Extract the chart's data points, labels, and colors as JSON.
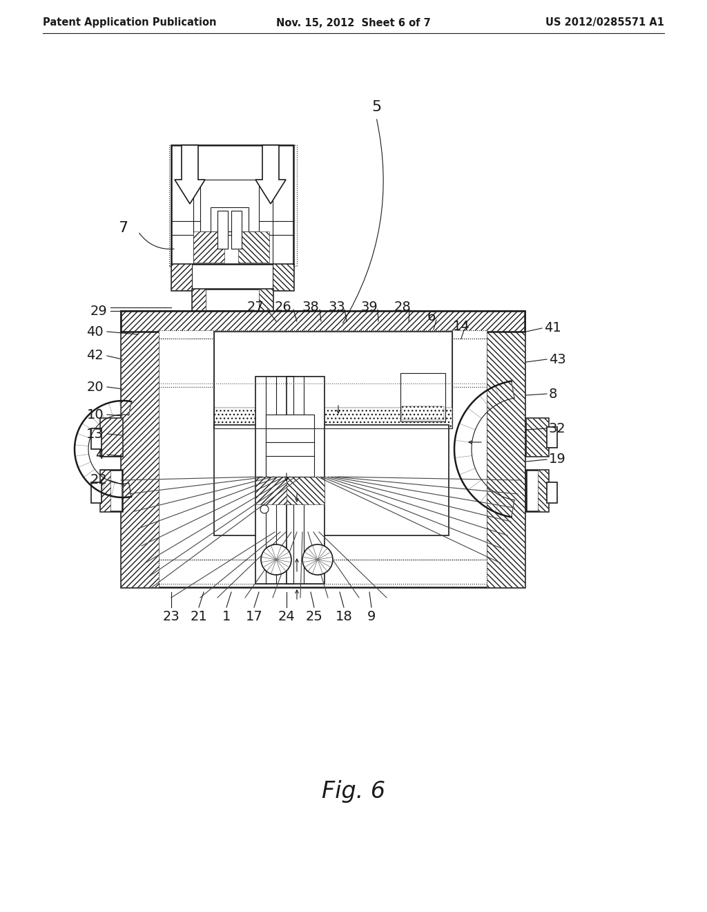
{
  "bg_color": "#ffffff",
  "header_left": "Patent Application Publication",
  "header_center": "Nov. 15, 2012  Sheet 6 of 7",
  "header_right": "US 2012/0285571 A1",
  "fig_label": "Fig. 6",
  "line_color": "#1a1a1a",
  "title_fontsize": 10.5,
  "label_fontsize": 14,
  "fig_label_fontsize": 24
}
